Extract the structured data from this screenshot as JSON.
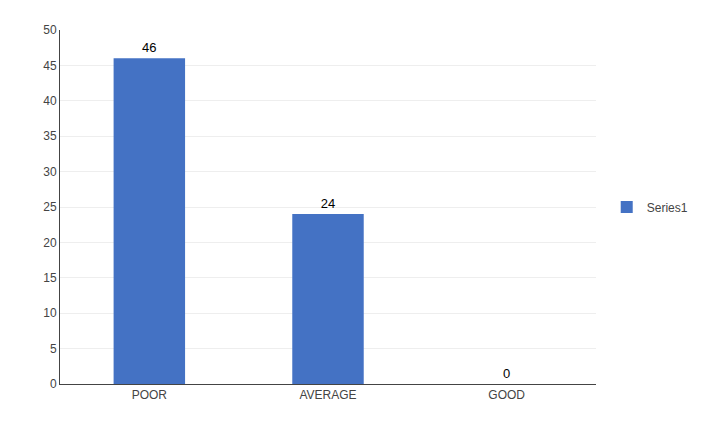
{
  "chart_data": {
    "type": "bar",
    "categories": [
      "POOR",
      "AVERAGE",
      "GOOD"
    ],
    "series": [
      {
        "name": "Series1",
        "color": "#4472C4",
        "values": [
          46,
          24,
          0
        ]
      }
    ],
    "ylim": [
      0,
      50
    ],
    "yticks": [
      0,
      5,
      10,
      15,
      20,
      25,
      30,
      35,
      40,
      45,
      50
    ],
    "grid": true,
    "legend": "right",
    "data_labels": true
  }
}
